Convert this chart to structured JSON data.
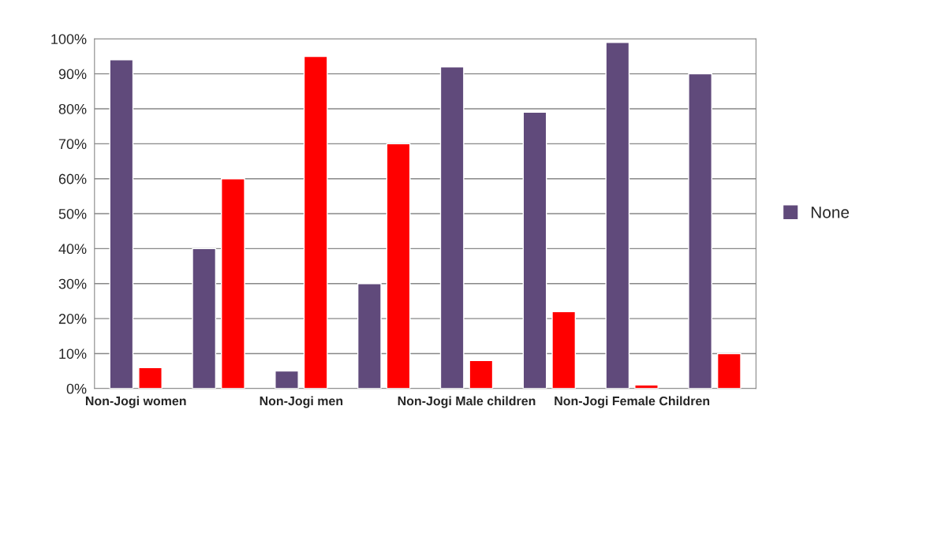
{
  "chart_data": {
    "type": "bar",
    "categories": [
      "Non-Jogi women",
      null,
      "Non-Jogi men",
      null,
      "Non-Jogi Male children",
      null,
      "Non-Jogi Female Children",
      null
    ],
    "series": [
      {
        "name": "None",
        "color": "#604a7b",
        "values": [
          94,
          40,
          5,
          30,
          92,
          79,
          99,
          90
        ]
      },
      {
        "color": "#ff0000",
        "values": [
          6,
          60,
          95,
          70,
          8,
          22,
          1,
          10
        ]
      }
    ],
    "ylim": [
      0,
      100
    ],
    "yticks": [
      {
        "value": 0,
        "label": "0%"
      },
      {
        "value": 10,
        "label": "10%"
      },
      {
        "value": 20,
        "label": "20%"
      },
      {
        "value": 30,
        "label": "30%"
      },
      {
        "value": 40,
        "label": "40%"
      },
      {
        "value": 50,
        "label": "50%"
      },
      {
        "value": 60,
        "label": "60%"
      },
      {
        "value": 70,
        "label": "70%"
      },
      {
        "value": 80,
        "label": "80%"
      },
      {
        "value": 90,
        "label": "90%"
      },
      {
        "value": 100,
        "label": "100%"
      }
    ],
    "grid": "y",
    "legend": "right"
  }
}
